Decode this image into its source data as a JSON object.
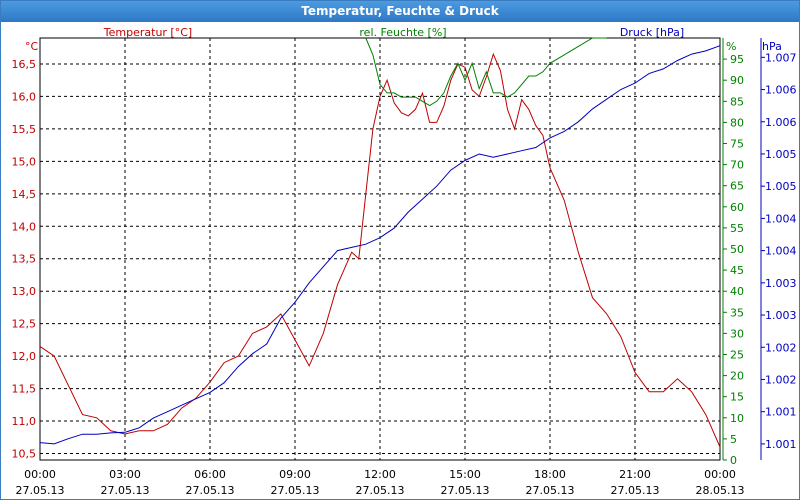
{
  "window": {
    "title": "Temperatur, Feuchte & Druck"
  },
  "colors": {
    "temperature": "#c00000",
    "humidity": "#008000",
    "pressure": "#0000c0",
    "grid": "#000000"
  },
  "chart_data": {
    "type": "line",
    "title": "Temperatur, Feuchte & Druck",
    "grid": true,
    "x_ticks": [
      {
        "time": "00:00",
        "date": "27.05.13"
      },
      {
        "time": "03:00",
        "date": "27.05.13"
      },
      {
        "time": "06:00",
        "date": "27.05.13"
      },
      {
        "time": "09:00",
        "date": "27.05.13"
      },
      {
        "time": "12:00",
        "date": "27.05.13"
      },
      {
        "time": "15:00",
        "date": "27.05.13"
      },
      {
        "time": "18:00",
        "date": "27.05.13"
      },
      {
        "time": "21:00",
        "date": "27.05.13"
      },
      {
        "time": "00:00",
        "date": "28.05.13"
      }
    ],
    "axes": {
      "temperature": {
        "unit": "°C",
        "label": "Temperatur [°C]",
        "range": [
          10.4,
          16.9
        ],
        "ticks": [
          "10,5",
          "11,0",
          "11,5",
          "12,0",
          "12,5",
          "13,0",
          "13,5",
          "14,0",
          "14,5",
          "15,0",
          "15,5",
          "16,0",
          "16,5"
        ]
      },
      "humidity": {
        "unit": "%",
        "label": "rel. Feuchte [%]",
        "range": [
          0,
          100
        ],
        "ticks": [
          "0",
          "5",
          "10",
          "15",
          "20",
          "25",
          "30",
          "35",
          "40",
          "45",
          "50",
          "55",
          "60",
          "65",
          "70",
          "75",
          "80",
          "85",
          "90",
          "95"
        ]
      },
      "pressure": {
        "unit": "hPa",
        "label": "Druck [hPa]",
        "range": [
          1000.55,
          1007.1
        ],
        "ticks": [
          "1.001",
          "1.001",
          "1.002",
          "1.002",
          "1.003",
          "1.003",
          "1.004",
          "1.004",
          "1.005",
          "1.005",
          "1.006",
          "1.006",
          "1.007"
        ]
      }
    },
    "series": [
      {
        "name": "Temperatur [°C]",
        "axis": "temperature",
        "x": [
          0,
          0.5,
          1,
          1.5,
          2,
          2.5,
          3,
          3.5,
          4,
          4.5,
          5,
          5.5,
          6,
          6.5,
          7,
          7.5,
          8,
          8.5,
          9,
          9.5,
          10,
          10.5,
          11,
          11.25,
          11.5,
          11.75,
          12,
          12.25,
          12.5,
          12.75,
          13,
          13.25,
          13.5,
          13.75,
          14,
          14.25,
          14.5,
          14.75,
          15,
          15.25,
          15.5,
          15.75,
          16,
          16.25,
          16.5,
          16.75,
          17,
          17.25,
          17.5,
          17.75,
          18,
          18.5,
          19,
          19.5,
          20,
          20.5,
          21,
          21.5,
          22,
          22.5,
          23,
          23.5,
          24
        ],
        "y": [
          12.15,
          12.0,
          11.55,
          11.1,
          11.05,
          10.85,
          10.8,
          10.85,
          10.85,
          10.95,
          11.2,
          11.35,
          11.6,
          11.9,
          12.0,
          12.35,
          12.45,
          12.65,
          12.25,
          11.85,
          12.35,
          13.1,
          13.6,
          13.5,
          14.5,
          15.5,
          16.0,
          16.25,
          15.9,
          15.75,
          15.7,
          15.8,
          16.05,
          15.6,
          15.6,
          15.85,
          16.25,
          16.5,
          16.45,
          16.1,
          16.0,
          16.3,
          16.65,
          16.4,
          15.8,
          15.5,
          15.95,
          15.8,
          15.55,
          15.4,
          14.9,
          14.4,
          13.6,
          12.9,
          12.65,
          12.3,
          11.75,
          11.45,
          11.45,
          11.65,
          11.45,
          11.1,
          10.6
        ]
      },
      {
        "name": "rel. Feuchte [%]",
        "axis": "humidity",
        "x": [
          11.5,
          11.75,
          12,
          12.25,
          12.5,
          12.75,
          13,
          13.25,
          13.5,
          13.75,
          14,
          14.25,
          14.5,
          14.75,
          15,
          15.25,
          15.5,
          15.75,
          16,
          16.25,
          16.5,
          16.75,
          17,
          17.25,
          17.5,
          17.75,
          18,
          18.5,
          19,
          19.5,
          20
        ],
        "y": [
          100,
          96,
          89,
          87,
          87,
          86,
          86,
          86,
          85,
          84,
          85,
          87,
          91,
          94,
          90,
          94,
          88,
          92,
          87,
          87,
          86,
          87,
          89,
          91,
          91,
          92,
          94,
          96,
          98,
          100,
          100
        ]
      },
      {
        "name": "Druck [hPa]",
        "axis": "pressure",
        "x": [
          0,
          0.5,
          1,
          1.5,
          2,
          2.5,
          3,
          3.5,
          4,
          4.5,
          5,
          5.5,
          6,
          6.5,
          7,
          7.5,
          8,
          8.5,
          9,
          9.5,
          10,
          10.5,
          11,
          11.5,
          12,
          12.5,
          13,
          13.5,
          14,
          14.5,
          15,
          15.5,
          16,
          16.5,
          17,
          17.5,
          18,
          18.5,
          19,
          19.5,
          20,
          20.5,
          21,
          21.5,
          22,
          22.5,
          23,
          23.5,
          24
        ],
        "y": [
          1000.82,
          1000.8,
          1000.88,
          1000.95,
          1000.95,
          1000.97,
          1000.98,
          1001.05,
          1001.2,
          1001.3,
          1001.4,
          1001.5,
          1001.6,
          1001.75,
          1002.0,
          1002.2,
          1002.35,
          1002.75,
          1003.0,
          1003.3,
          1003.55,
          1003.8,
          1003.85,
          1003.9,
          1004.0,
          1004.15,
          1004.4,
          1004.6,
          1004.8,
          1005.05,
          1005.2,
          1005.3,
          1005.25,
          1005.3,
          1005.35,
          1005.4,
          1005.55,
          1005.65,
          1005.8,
          1006.0,
          1006.15,
          1006.3,
          1006.4,
          1006.55,
          1006.62,
          1006.75,
          1006.85,
          1006.9,
          1006.98
        ]
      }
    ]
  }
}
